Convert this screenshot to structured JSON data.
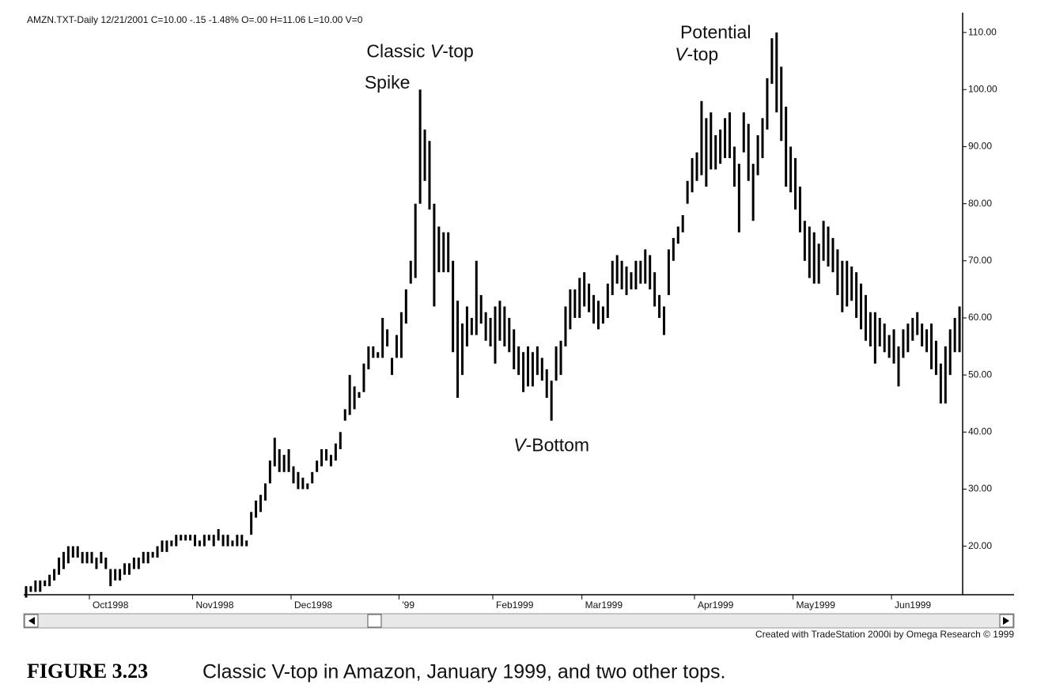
{
  "chart_data": {
    "type": "ohlc",
    "title": "AMZN.TXT-Daily  12/21/2001  C=10.00  -.15  -1.48%  O=.00  H=11.06  L=10.00  V=0",
    "credit": "Created with TradeStation 2000i by Omega Research © 1999",
    "caption": {
      "label": "FIGURE 3.23",
      "text": "Classic V-top in Amazon, January 1999, and two other tops."
    },
    "annotations": [
      {
        "text": "Classic V-top",
        "index": 84,
        "value": 106.5
      },
      {
        "text": "Spike",
        "index": 77,
        "value": 101
      },
      {
        "text": "V-Bottom",
        "index": 112,
        "value": 37.5
      },
      {
        "text": "Potential V-top",
        "index": 147,
        "value": 108
      }
    ],
    "x_labels": [
      {
        "index": 14,
        "label": "Oct1998"
      },
      {
        "index": 36,
        "label": "Nov1998"
      },
      {
        "index": 57,
        "label": "Dec1998"
      },
      {
        "index": 80,
        "label": "'99"
      },
      {
        "index": 100,
        "label": "Feb1999"
      },
      {
        "index": 119,
        "label": "Mar1999"
      },
      {
        "index": 143,
        "label": "Apr1999"
      },
      {
        "index": 164,
        "label": "May1999"
      },
      {
        "index": 185,
        "label": "Jun1999"
      }
    ],
    "high": [
      13,
      13,
      14,
      14,
      14,
      15,
      16,
      18,
      19,
      20,
      20,
      20,
      19,
      19,
      19,
      18,
      19,
      18,
      16,
      16,
      16,
      17,
      17,
      18,
      18,
      19,
      19,
      19,
      20,
      21,
      21,
      21,
      22,
      22,
      22,
      22,
      22,
      21,
      22,
      22,
      22,
      23,
      22,
      22,
      21,
      22,
      22,
      21,
      26,
      28,
      29,
      31,
      35,
      39,
      37,
      36,
      37,
      34,
      33,
      32,
      31,
      33,
      35,
      37,
      37,
      36,
      38,
      40,
      44,
      50,
      48,
      47,
      52,
      55,
      55,
      54,
      60,
      58,
      53,
      57,
      61,
      65,
      70,
      80,
      100,
      93,
      91,
      80,
      76,
      75,
      75,
      70,
      63,
      59,
      62,
      60,
      70,
      64,
      61,
      60,
      62,
      63,
      62,
      60,
      58,
      55,
      54,
      55,
      54,
      55,
      53,
      51,
      49,
      55,
      56,
      62,
      65,
      65,
      67,
      68,
      66,
      64,
      63,
      62,
      66,
      70,
      71,
      70,
      69,
      68,
      70,
      70,
      72,
      71,
      68,
      64,
      62,
      72,
      74,
      76,
      78,
      84,
      88,
      89,
      98,
      95,
      96,
      92,
      93,
      95,
      96,
      90,
      87,
      96,
      94,
      87,
      92,
      95,
      102,
      109,
      110,
      104,
      97,
      90,
      88,
      83,
      77,
      76,
      75,
      73,
      77,
      76,
      74,
      72,
      70,
      70,
      69,
      68,
      66,
      64,
      61,
      61,
      60,
      59,
      57,
      58,
      55,
      58,
      59,
      60,
      61,
      59,
      58,
      59,
      56,
      52,
      55,
      58,
      60,
      62
    ],
    "low": [
      11,
      12,
      12,
      12,
      13,
      13,
      14,
      15,
      16,
      17,
      18,
      18,
      17,
      17,
      17,
      16,
      17,
      16,
      13,
      14,
      14,
      15,
      15,
      16,
      16,
      17,
      17,
      18,
      18,
      19,
      19,
      20,
      20,
      21,
      21,
      21,
      20,
      20,
      20,
      21,
      20,
      21,
      20,
      20,
      20,
      20,
      20,
      20,
      22,
      25,
      26,
      28,
      31,
      34,
      33,
      33,
      33,
      31,
      30,
      30,
      30,
      31,
      33,
      34,
      35,
      34,
      35,
      37,
      42,
      43,
      44,
      46,
      47,
      51,
      53,
      53,
      53,
      55,
      50,
      53,
      53,
      59,
      66,
      67,
      80,
      84,
      79,
      62,
      68,
      68,
      68,
      54,
      46,
      50,
      55,
      57,
      57,
      59,
      56,
      55,
      52,
      56,
      55,
      54,
      51,
      50,
      47,
      48,
      48,
      50,
      49,
      46,
      42,
      49,
      50,
      55,
      58,
      60,
      60,
      62,
      61,
      59,
      58,
      59,
      60,
      64,
      66,
      65,
      64,
      65,
      65,
      66,
      66,
      65,
      62,
      60,
      57,
      64,
      70,
      73,
      75,
      80,
      82,
      84,
      85,
      83,
      86,
      86,
      87,
      88,
      88,
      83,
      75,
      89,
      84,
      77,
      85,
      88,
      93,
      101,
      96,
      91,
      83,
      82,
      79,
      75,
      70,
      67,
      66,
      66,
      70,
      69,
      68,
      64,
      61,
      62,
      63,
      60,
      58,
      56,
      55,
      52,
      55,
      54,
      53,
      52,
      48,
      53,
      54,
      56,
      57,
      55,
      54,
      51,
      50,
      45,
      45,
      50,
      54,
      54
    ],
    "color": "#000000",
    "ylim": [
      11.5,
      113.2
    ],
    "yticks": [
      {
        "value": 20,
        "label": "20.00"
      },
      {
        "value": 30,
        "label": "30.00"
      },
      {
        "value": 40,
        "label": "40.00"
      },
      {
        "value": 50,
        "label": "50.00"
      },
      {
        "value": 60,
        "label": "60.00"
      },
      {
        "value": 70,
        "label": "70.00"
      },
      {
        "value": 80,
        "label": "80.00"
      },
      {
        "value": 90,
        "label": "90.00"
      },
      {
        "value": 100,
        "label": "100.00"
      },
      {
        "value": 110,
        "label": "110.00"
      }
    ]
  }
}
